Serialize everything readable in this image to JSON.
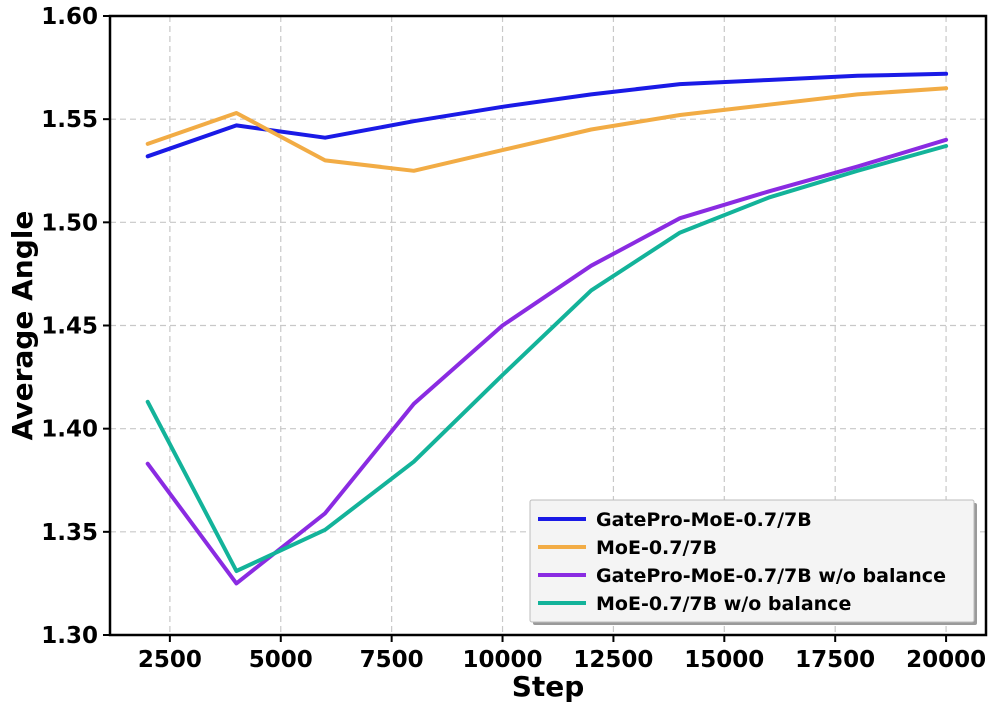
{
  "chart_data": {
    "type": "line",
    "title": "",
    "xlabel": "Step",
    "ylabel": "Average Angle",
    "xlim": [
      1150,
      20900
    ],
    "ylim": [
      1.3,
      1.6
    ],
    "x_ticks": [
      2500,
      5000,
      7500,
      10000,
      12500,
      15000,
      17500,
      20000
    ],
    "y_ticks": [
      1.3,
      1.35,
      1.4,
      1.45,
      1.5,
      1.55,
      1.6
    ],
    "x_tick_labels": [
      "2500",
      "5000",
      "7500",
      "10000",
      "12500",
      "15000",
      "17500",
      "20000"
    ],
    "y_tick_labels": [
      "1.30",
      "1.35",
      "1.40",
      "1.45",
      "1.50",
      "1.55",
      "1.60"
    ],
    "grid": true,
    "legend_position": "bottom-right",
    "x": [
      2000,
      4000,
      6000,
      8000,
      10000,
      12000,
      14000,
      16000,
      18000,
      20000
    ],
    "series": [
      {
        "name": "GatePro-MoE-0.7/7B",
        "color": "#1a1ae6",
        "values": [
          1.532,
          1.547,
          1.541,
          1.549,
          1.556,
          1.562,
          1.567,
          1.569,
          1.571,
          1.572
        ]
      },
      {
        "name": "MoE-0.7/7B",
        "color": "#f2ac45",
        "values": [
          1.538,
          1.553,
          1.53,
          1.525,
          1.535,
          1.545,
          1.552,
          1.557,
          1.562,
          1.565
        ]
      },
      {
        "name": "GatePro-MoE-0.7/7B w/o balance",
        "color": "#8a2be2",
        "values": [
          1.383,
          1.325,
          1.359,
          1.412,
          1.45,
          1.479,
          1.502,
          1.515,
          1.527,
          1.54
        ]
      },
      {
        "name": "MoE-0.7/7B w/o balance",
        "color": "#13b39a",
        "values": [
          1.413,
          1.331,
          1.351,
          1.384,
          1.426,
          1.467,
          1.495,
          1.512,
          1.525,
          1.537
        ]
      }
    ]
  }
}
